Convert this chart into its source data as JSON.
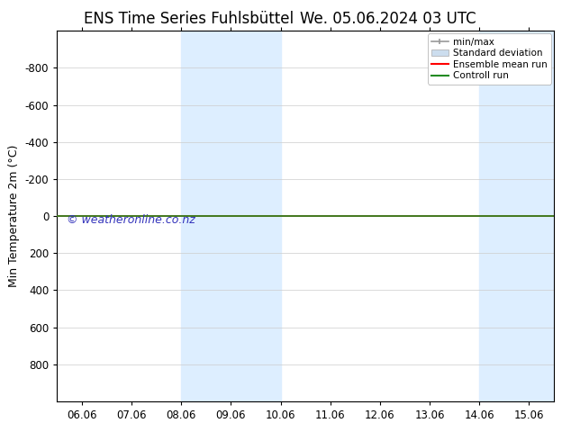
{
  "title_left": "ENS Time Series Fuhlsbüttel",
  "title_right": "We. 05.06.2024 03 UTC",
  "ylabel": "Min Temperature 2m (°C)",
  "background_color": "#ffffff",
  "plot_bg_color": "#ffffff",
  "ylim_top": -1000,
  "ylim_bottom": 1000,
  "yticks": [
    -800,
    -600,
    -400,
    -200,
    0,
    200,
    400,
    600,
    800
  ],
  "ytick_labels": [
    "-800",
    "-600",
    "-400",
    "-200",
    "0",
    "200",
    "400",
    "600",
    "800"
  ],
  "xtick_labels": [
    "06.06",
    "07.06",
    "08.06",
    "09.06",
    "10.06",
    "11.06",
    "12.06",
    "13.06",
    "14.06",
    "15.06"
  ],
  "xtick_positions": [
    0,
    1,
    2,
    3,
    4,
    5,
    6,
    7,
    8,
    9
  ],
  "shaded_regions": [
    {
      "x_start": 2.0,
      "x_end": 3.0,
      "color": "#ddeeff"
    },
    {
      "x_start": 3.0,
      "x_end": 4.0,
      "color": "#ddeeff"
    },
    {
      "x_start": 8.0,
      "x_end": 9.0,
      "color": "#ddeeff"
    },
    {
      "x_start": 9.0,
      "x_end": 9.5,
      "color": "#ddeeff"
    }
  ],
  "hline_y": 0,
  "hline_color_green": "#228B22",
  "hline_color_red": "#ff0000",
  "hline_linewidth": 1.2,
  "minmax_color": "#999999",
  "std_dev_color": "#ccdded",
  "watermark_text": "© weatheronline.co.nz",
  "watermark_color": "#3333bb",
  "watermark_fontsize": 9,
  "legend_labels": [
    "min/max",
    "Standard deviation",
    "Ensemble mean run",
    "Controll run"
  ],
  "legend_line_colors": [
    "#999999",
    "#ccddee",
    "#ff0000",
    "#228B22"
  ],
  "grid_color": "#cccccc",
  "tick_fontsize": 8.5,
  "title_fontsize": 12,
  "axis_border_color": "#000000",
  "xlim_left": -0.5,
  "xlim_right": 9.5
}
